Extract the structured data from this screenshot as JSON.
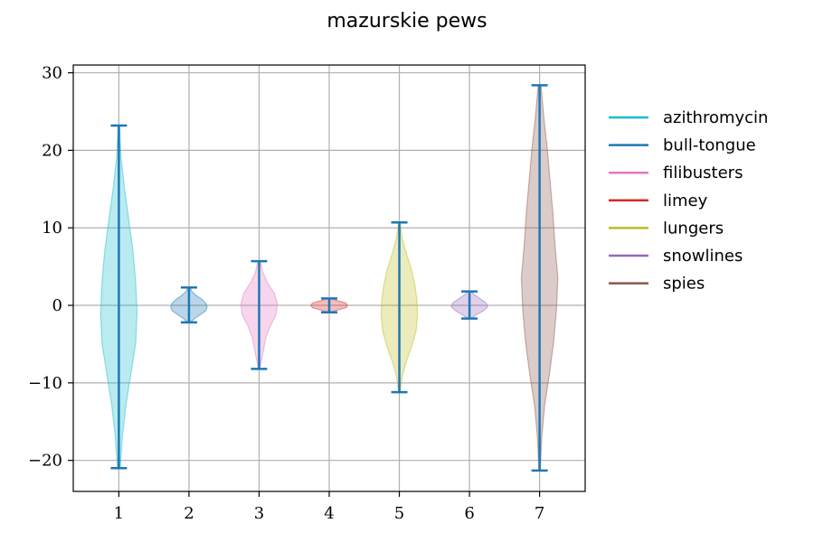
{
  "chart_data": {
    "type": "violin",
    "title": "mazurskie pews",
    "xlabel": "",
    "ylabel": "",
    "categories": [
      "1",
      "2",
      "3",
      "4",
      "5",
      "6",
      "7"
    ],
    "xlim": [
      0.35,
      7.65
    ],
    "ylim": [
      -24,
      31
    ],
    "yticks": [
      -20,
      -10,
      0,
      10,
      20,
      30
    ],
    "ytick_labels": [
      "−20",
      "−10",
      "0",
      "10",
      "20",
      "30"
    ],
    "grid": true,
    "legend_position": "right",
    "series": [
      {
        "name": "azithromycin",
        "color": "#17becf",
        "min": -21.0,
        "max": 23.2,
        "widths": [
          0.02,
          0.05,
          0.1,
          0.17,
          0.24,
          0.26,
          0.24,
          0.2,
          0.14,
          0.08,
          0.03,
          0.01
        ]
      },
      {
        "name": "bull-tongue",
        "color": "#1f77b4",
        "min": -2.2,
        "max": 2.3,
        "widths": [
          0.02,
          0.08,
          0.16,
          0.24,
          0.26,
          0.24,
          0.18,
          0.1,
          0.04,
          0.02
        ]
      },
      {
        "name": "filibusters",
        "color": "#e377c2",
        "min": -8.2,
        "max": 5.7,
        "widths": [
          0.01,
          0.04,
          0.07,
          0.1,
          0.16,
          0.24,
          0.26,
          0.22,
          0.12,
          0.05,
          0.02
        ]
      },
      {
        "name": "limey",
        "color": "#d62728",
        "min": -0.9,
        "max": 0.9,
        "widths": [
          0.02,
          0.12,
          0.24,
          0.26,
          0.24,
          0.12,
          0.02
        ]
      },
      {
        "name": "lungers",
        "color": "#bcbd22",
        "min": -11.2,
        "max": 10.7,
        "widths": [
          0.01,
          0.04,
          0.1,
          0.18,
          0.24,
          0.26,
          0.25,
          0.22,
          0.17,
          0.1,
          0.04,
          0.01
        ]
      },
      {
        "name": "snowlines",
        "color": "#9467bd",
        "min": -1.7,
        "max": 1.8,
        "widths": [
          0.02,
          0.1,
          0.2,
          0.26,
          0.24,
          0.16,
          0.08,
          0.02
        ]
      },
      {
        "name": "spies",
        "color": "#8c564b",
        "min": -21.3,
        "max": 28.4,
        "widths": [
          0.01,
          0.03,
          0.07,
          0.14,
          0.2,
          0.24,
          0.26,
          0.22,
          0.19,
          0.15,
          0.11,
          0.06,
          0.02
        ]
      }
    ]
  }
}
